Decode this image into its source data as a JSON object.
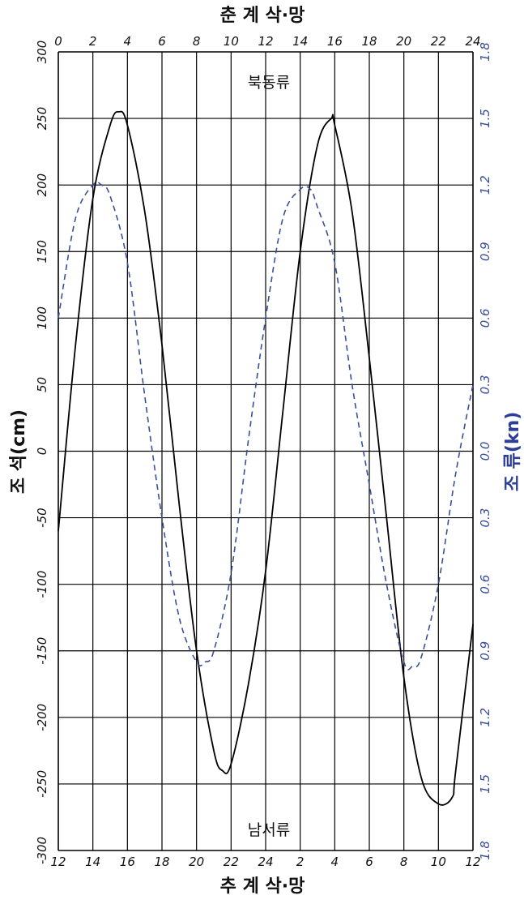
{
  "chart_data": {
    "type": "line",
    "top_axis": {
      "label": "춘 계 삭·망",
      "ticks": [
        "0",
        "2",
        "4",
        "6",
        "8",
        "10",
        "12",
        "14",
        "16",
        "18",
        "20",
        "22",
        "24"
      ]
    },
    "bottom_axis": {
      "label": "추 계 삭·망",
      "ticks": [
        "12",
        "14",
        "16",
        "18",
        "20",
        "22",
        "24",
        "2",
        "4",
        "6",
        "8",
        "10",
        "12"
      ]
    },
    "x_range": [
      0,
      24
    ],
    "left_axis": {
      "label": "조 석(cm)",
      "ticks": [
        "300",
        "250",
        "200",
        "150",
        "100",
        "50",
        "0",
        "-50",
        "-100",
        "-150",
        "-200",
        "-250",
        "-300"
      ],
      "range": [
        -300,
        300
      ]
    },
    "right_axis": {
      "label": "조 류(kn)",
      "ticks": [
        "1.8",
        "1.5",
        "1.2",
        "0.9",
        "0.6",
        "0.3",
        "0.0",
        "0.3",
        "0.6",
        "0.9",
        "1.2",
        "1.5",
        "1.8"
      ],
      "range": [
        -1.8,
        1.8
      ]
    },
    "annotations": {
      "top": "북동류",
      "bottom": "남서류"
    },
    "grid": true,
    "colors": {
      "tide": "#000000",
      "current": "#3a4f9a"
    },
    "series": [
      {
        "axis": "left",
        "style": "solid",
        "color": "#000000",
        "x": [
          0,
          1,
          2,
          3,
          3.5,
          4,
          5,
          6,
          7,
          8,
          9,
          9.5,
          10,
          11,
          12,
          13,
          14,
          15,
          15.8,
          16,
          17,
          18,
          19,
          20,
          21,
          22,
          22.8,
          23,
          24
        ],
        "y": [
          -60,
          80,
          190,
          245,
          255,
          245,
          180,
          80,
          -40,
          -150,
          -225,
          -240,
          -235,
          -175,
          -90,
          30,
          150,
          230,
          250,
          245,
          180,
          70,
          -50,
          -170,
          -245,
          -265,
          -260,
          -240,
          -130
        ]
      },
      {
        "axis": "right",
        "style": "dashed",
        "color": "#3a4f9a",
        "x": [
          0,
          1,
          2,
          2.5,
          3,
          4,
          5,
          6,
          7,
          8,
          8.5,
          9,
          10,
          11,
          12,
          13,
          14,
          14.6,
          15,
          16,
          17,
          18,
          19,
          20,
          20.5,
          21,
          22,
          23,
          24
        ],
        "y": [
          0.6,
          1.05,
          1.2,
          1.2,
          1.15,
          0.85,
          0.25,
          -0.3,
          -0.75,
          -0.95,
          -0.95,
          -0.9,
          -0.55,
          0.05,
          0.6,
          1.05,
          1.18,
          1.18,
          1.1,
          0.85,
          0.3,
          -0.15,
          -0.6,
          -0.95,
          -0.97,
          -0.93,
          -0.6,
          -0.1,
          0.3
        ]
      }
    ]
  }
}
